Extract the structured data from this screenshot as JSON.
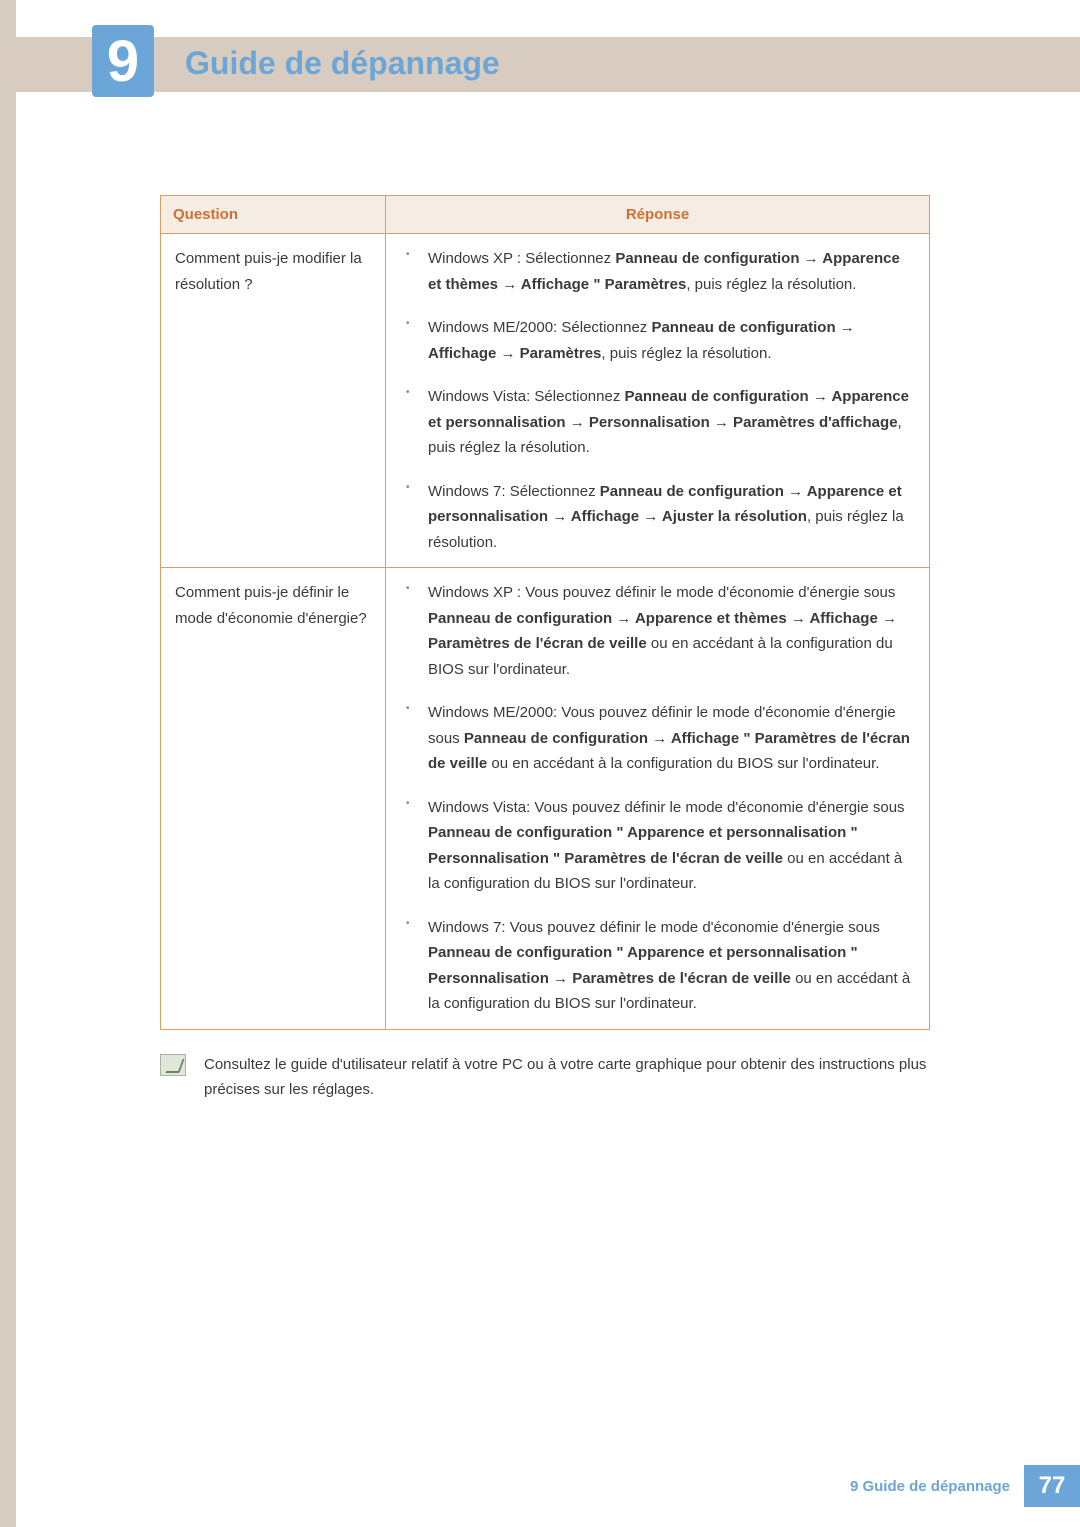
{
  "chapter": {
    "number": "9",
    "title": "Guide de dépannage"
  },
  "table": {
    "headers": {
      "question": "Question",
      "response": "Réponse"
    },
    "rows": [
      {
        "question": "Comment puis-je modifier la résolution ?",
        "answers": [
          {
            "os": "Windows XP : Sélectionnez ",
            "path": "Panneau de configuration → Apparence et thèmes → Affichage  \"  Paramètres",
            "tail": ", puis réglez la résolution."
          },
          {
            "os": "Windows ME/2000: Sélectionnez ",
            "path": "Panneau de configuration → Affichage → Paramètres",
            "tail": ", puis réglez la résolution."
          },
          {
            "os": "Windows Vista: Sélectionnez ",
            "path": "Panneau de configuration  → Apparence et personnalisation  → Personnalisation → Paramètres d'affichage",
            "tail": ", puis réglez la résolution."
          },
          {
            "os": "Windows 7: Sélectionnez ",
            "path": "Panneau de configuration → Apparence et personnalisation → Affichage → Ajuster la résolution",
            "tail": ", puis réglez la résolution."
          }
        ]
      },
      {
        "question": "Comment puis-je définir le mode d'économie d'énergie?",
        "answers": [
          {
            "os": "Windows XP : Vous pouvez définir le mode d'économie d'énergie sous ",
            "path": "Panneau de configuration → Apparence et thèmes → Affichage → Paramètres de l'écran de veille",
            "tail": " ou en accédant à la configuration du BIOS sur l'ordinateur."
          },
          {
            "os": "Windows ME/2000: Vous pouvez définir le mode d'économie d'énergie sous ",
            "path": "Panneau de configuration  → Affichage  \"  Paramètres de l'écran de veille",
            "tail": " ou en accédant à la configuration du BIOS sur l'ordinateur."
          },
          {
            "os": "Windows Vista: Vous pouvez définir le mode d'économie d'énergie sous ",
            "path": "Panneau de configuration  \"  Apparence et personnalisation  \"  Personnalisation  \"  Paramètres de l'écran de veille",
            "tail": " ou en accédant à la configuration du BIOS sur l'ordinateur."
          },
          {
            "os": "Windows 7: Vous pouvez définir le mode d'économie d'énergie sous ",
            "path": "Panneau de configuration  \"  Apparence et personnalisation  \"  Personnalisation → Paramètres de l'écran de veille",
            "tail": " ou en accédant à la configuration du BIOS sur l'ordinateur."
          }
        ]
      }
    ]
  },
  "note": "Consultez le guide d'utilisateur relatif à votre PC ou à votre carte graphique pour obtenir des instructions plus précises sur les réglages.",
  "footer": {
    "text": "9 Guide de dépannage",
    "page": "77"
  },
  "colors": {
    "accent_blue": "#6ca6d8",
    "beige": "#d8ccc0",
    "table_border": "#d8a060",
    "header_bg": "#f5ede4",
    "header_text": "#d07030"
  }
}
